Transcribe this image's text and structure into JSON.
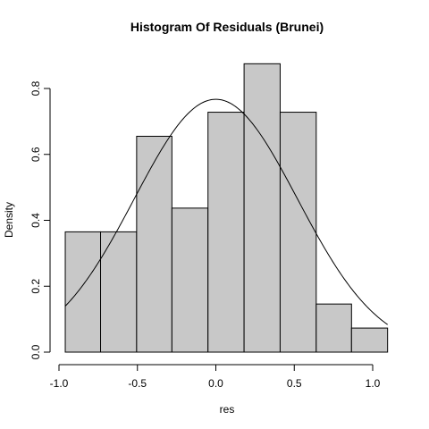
{
  "chart_data": {
    "type": "bar",
    "subtype": "histogram-with-density-curve",
    "title": "Histogram Of Residuals (Brunei)",
    "xlabel": "res",
    "ylabel": "Density",
    "xlim": [
      -1.05,
      1.1
    ],
    "ylim": [
      0,
      0.8
    ],
    "x_ticks": [
      -1.0,
      -0.5,
      0.0,
      0.5,
      1.0
    ],
    "x_tick_labels": [
      "-1.0",
      "-0.5",
      "0.0",
      "0.5",
      "1.0"
    ],
    "y_ticks": [
      0.0,
      0.2,
      0.4,
      0.6,
      0.8
    ],
    "y_tick_labels": [
      "0.0",
      "0.2",
      "0.4",
      "0.6",
      "0.8"
    ],
    "grid": false,
    "bins": [
      {
        "left": -0.96,
        "right": -0.735,
        "density": 0.365
      },
      {
        "left": -0.735,
        "right": -0.505,
        "density": 0.365
      },
      {
        "left": -0.505,
        "right": -0.28,
        "density": 0.655
      },
      {
        "left": -0.28,
        "right": -0.05,
        "density": 0.437
      },
      {
        "left": -0.05,
        "right": 0.18,
        "density": 0.728
      },
      {
        "left": 0.18,
        "right": 0.41,
        "density": 0.875
      },
      {
        "left": 0.41,
        "right": 0.64,
        "density": 0.728
      },
      {
        "left": 0.64,
        "right": 0.865,
        "density": 0.146
      },
      {
        "left": 0.865,
        "right": 1.095,
        "density": 0.073
      }
    ],
    "density_curve": {
      "distribution": "normal",
      "mean": 0.0,
      "sd": 0.52,
      "x_range": [
        -0.96,
        1.095
      ]
    },
    "colors": {
      "bar_fill": "#c8c8c8",
      "bar_stroke": "#000000",
      "curve": "#000000"
    }
  }
}
